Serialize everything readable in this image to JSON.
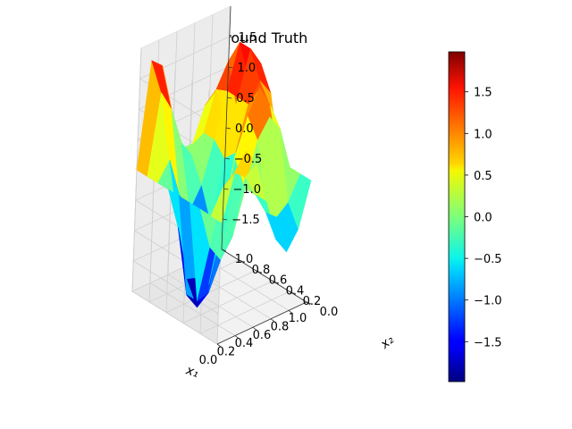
{
  "chart_data": {
    "type": "surface3d",
    "title": "Ground Truth",
    "xlabel": "x₁",
    "ylabel": "x₂",
    "zlabel": "",
    "xlim": [
      0.0,
      1.0
    ],
    "ylim": [
      0.0,
      1.0
    ],
    "zlim": [
      -2.0,
      2.0
    ],
    "x_ticks": [
      "0.0",
      "0.2",
      "0.4",
      "0.6",
      "0.8",
      "1.0"
    ],
    "y_ticks": [
      "0.0",
      "0.2",
      "0.4",
      "0.6",
      "0.8",
      "1.0"
    ],
    "z_ticks": [
      "−1.5",
      "−1.0",
      "−0.5",
      "0.0",
      "0.5",
      "1.0",
      "1.5"
    ],
    "colormap": "jet",
    "colorbar": {
      "range": [
        -1.98,
        1.98
      ],
      "ticks": [
        "−1.5",
        "−1.0",
        "−0.5",
        "0.0",
        "0.5",
        "1.0",
        "1.5"
      ]
    },
    "grid": true,
    "surface": {
      "x": [
        0,
        0.125,
        0.25,
        0.375,
        0.5,
        0.625,
        0.75,
        0.875,
        1.0
      ],
      "y": [
        0,
        0.125,
        0.25,
        0.375,
        0.5,
        0.625,
        0.75,
        0.875,
        1.0
      ],
      "z": [
        [
          0.0,
          0.71,
          1.0,
          0.71,
          0.0,
          -0.71,
          -1.0,
          -0.71,
          0.0
        ],
        [
          0.0,
          0.38,
          0.54,
          0.38,
          0.0,
          -0.38,
          -0.54,
          -0.38,
          0.0
        ],
        [
          0.0,
          -0.71,
          -1.0,
          -0.71,
          0.0,
          0.71,
          1.0,
          0.71,
          0.0
        ],
        [
          0.0,
          -1.71,
          -1.65,
          -0.71,
          0.38,
          1.0,
          1.38,
          1.0,
          0.0
        ],
        [
          0.0,
          -1.71,
          -2.0,
          -1.71,
          -0.71,
          0.29,
          1.0,
          1.29,
          1.0
        ],
        [
          0.0,
          -0.71,
          -1.65,
          -1.71,
          -0.92,
          0.09,
          1.0,
          1.71,
          1.38
        ],
        [
          0.0,
          0.29,
          -0.38,
          -0.71,
          -0.38,
          0.29,
          1.0,
          1.71,
          1.0
        ],
        [
          0.0,
          1.29,
          0.92,
          0.29,
          0.0,
          0.29,
          0.92,
          1.29,
          0.38
        ],
        [
          0.0,
          1.71,
          1.54,
          0.71,
          0.0,
          0.0,
          0.54,
          0.71,
          0.0
        ]
      ]
    }
  }
}
